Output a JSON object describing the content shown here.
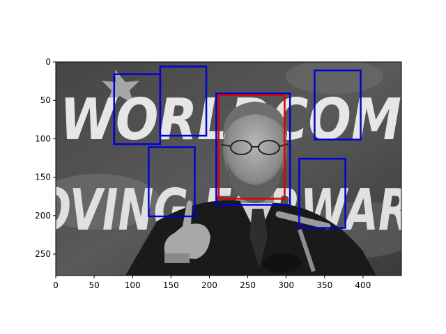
{
  "image": {
    "description_only_for_drawing": false,
    "banner_lines": [
      "WORLDCOM",
      "MOVING FORWARD"
    ],
    "width_units": 450,
    "height_units": 278
  },
  "axes": {
    "xlim": [
      0,
      450
    ],
    "ylim": [
      278,
      0
    ],
    "x_ticks": [
      0,
      50,
      100,
      150,
      200,
      250,
      300,
      350,
      400
    ],
    "y_ticks": [
      0,
      50,
      100,
      150,
      200,
      250
    ]
  },
  "boxes": [
    {
      "label": "detection",
      "color": "#0000dd",
      "x0": 76,
      "y0": 16,
      "x1": 136,
      "y1": 107
    },
    {
      "label": "detection",
      "color": "#0000dd",
      "x0": 136,
      "y0": 6,
      "x1": 196,
      "y1": 96
    },
    {
      "label": "detection",
      "color": "#0000dd",
      "x0": 121,
      "y0": 111,
      "x1": 181,
      "y1": 201
    },
    {
      "label": "detection",
      "color": "#0000dd",
      "x0": 209,
      "y0": 41,
      "x1": 305,
      "y1": 186
    },
    {
      "label": "detection",
      "color": "#0000dd",
      "x0": 337,
      "y0": 11,
      "x1": 397,
      "y1": 101
    },
    {
      "label": "detection",
      "color": "#0000dd",
      "x0": 317,
      "y0": 126,
      "x1": 377,
      "y1": 216
    },
    {
      "label": "ground-truth",
      "color": "#dd0000",
      "x0": 212,
      "y0": 43,
      "x1": 298,
      "y1": 178
    }
  ]
}
